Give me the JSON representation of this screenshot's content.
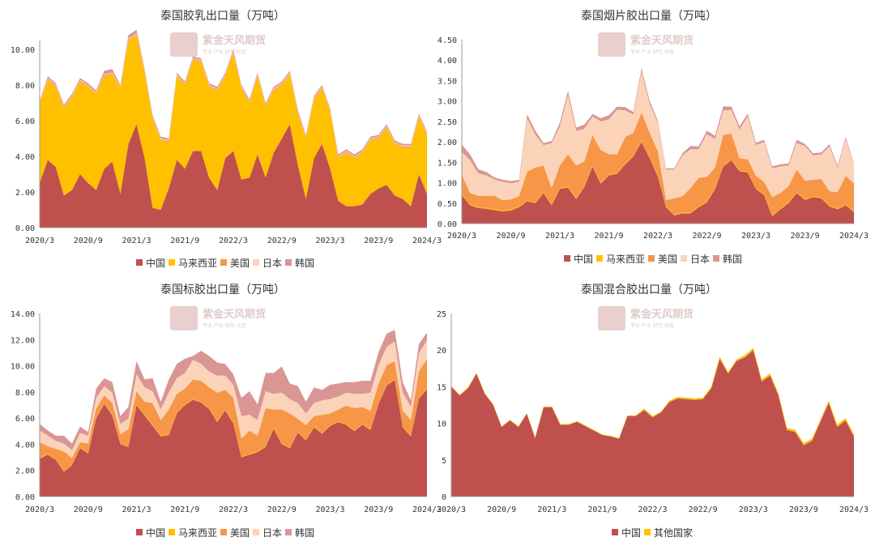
{
  "watermark": {
    "text": "紫金天风期货",
    "subtext": "专业 产业 研究 创造"
  },
  "colors": {
    "中国": "#c0504d",
    "马来西亚": "#ffc000",
    "美国": "#f79646",
    "日本": "#fbd3b9",
    "韩国": "#d99694",
    "其他国家": "#ffc000"
  },
  "chart_data": [
    {
      "type": "area",
      "stacked": true,
      "title": "泰国胶乳出口量（万吨）",
      "x_labels": [
        "2020/3",
        "2020/9",
        "2021/3",
        "2021/9",
        "2022/3",
        "2022/9",
        "2023/3",
        "2023/9",
        "2024/3"
      ],
      "x_count": 49,
      "ylim": [
        0,
        10.5
      ],
      "y_ticks": [
        "0.00",
        "2.00",
        "4.00",
        "6.00",
        "8.00",
        "10.00"
      ],
      "y_tick_values": [
        0,
        2,
        4,
        6,
        8,
        10
      ],
      "legend": [
        "中国",
        "马来西亚",
        "美国",
        "日本",
        "韩国"
      ],
      "series": [
        {
          "name": "中国",
          "values": [
            2.5,
            3.8,
            3.4,
            1.8,
            2.1,
            3.0,
            2.5,
            2.1,
            3.3,
            3.7,
            1.9,
            4.7,
            5.8,
            3.9,
            1.1,
            1.0,
            2.2,
            3.8,
            3.3,
            4.3,
            4.3,
            2.8,
            2.1,
            3.9,
            4.3,
            2.7,
            2.8,
            4.1,
            2.8,
            4.2,
            5.0,
            5.8,
            3.5,
            1.6,
            3.9,
            4.7,
            3.3,
            1.5,
            1.2,
            1.2,
            1.3,
            1.9,
            2.2,
            2.4,
            1.8,
            1.6,
            1.2,
            3.0,
            1.9
          ]
        },
        {
          "name": "马来西亚",
          "values": [
            4.4,
            4.5,
            4.5,
            4.9,
            5.2,
            5.2,
            5.4,
            5.4,
            5.2,
            4.9,
            5.9,
            5.8,
            5.0,
            4.8,
            5.0,
            3.9,
            2.6,
            4.7,
            4.7,
            5.1,
            5.0,
            5.1,
            5.6,
            4.6,
            5.5,
            5.1,
            4.2,
            4.4,
            4.0,
            3.5,
            3.0,
            2.8,
            2.9,
            3.4,
            3.3,
            3.1,
            3.2,
            2.4,
            3.0,
            2.7,
            2.9,
            3.0,
            2.8,
            3.2,
            2.9,
            2.9,
            3.3,
            3.2,
            3.3
          ]
        },
        {
          "name": "美国",
          "values": [
            0.05,
            0.05,
            0.05,
            0.05,
            0.05,
            0.05,
            0.05,
            0.05,
            0.05,
            0.05,
            0.05,
            0.05,
            0.05,
            0.05,
            0.05,
            0.05,
            0.05,
            0.05,
            0.05,
            0.05,
            0.05,
            0.05,
            0.05,
            0.05,
            0.05,
            0.05,
            0.05,
            0.05,
            0.05,
            0.05,
            0.05,
            0.05,
            0.05,
            0.05,
            0.05,
            0.05,
            0.05,
            0.05,
            0.05,
            0.05,
            0.05,
            0.05,
            0.05,
            0.05,
            0.05,
            0.05,
            0.05,
            0.05,
            0.05
          ]
        },
        {
          "name": "日本",
          "values": [
            0.05,
            0.05,
            0.05,
            0.05,
            0.05,
            0.05,
            0.05,
            0.05,
            0.05,
            0.05,
            0.05,
            0.05,
            0.05,
            0.05,
            0.05,
            0.05,
            0.05,
            0.05,
            0.05,
            0.05,
            0.05,
            0.05,
            0.05,
            0.05,
            0.05,
            0.05,
            0.05,
            0.05,
            0.05,
            0.05,
            0.05,
            0.05,
            0.05,
            0.05,
            0.05,
            0.05,
            0.05,
            0.05,
            0.05,
            0.05,
            0.05,
            0.05,
            0.05,
            0.05,
            0.05,
            0.05,
            0.05,
            0.05,
            0.05
          ]
        },
        {
          "name": "韩国",
          "values": [
            0.1,
            0.1,
            0.1,
            0.1,
            0.1,
            0.1,
            0.1,
            0.1,
            0.2,
            0.2,
            0.1,
            0.2,
            0.2,
            0.1,
            0.1,
            0.1,
            0.1,
            0.1,
            0.1,
            0.1,
            0.1,
            0.1,
            0.1,
            0.1,
            0.1,
            0.1,
            0.1,
            0.1,
            0.1,
            0.1,
            0.1,
            0.1,
            0.1,
            0.1,
            0.1,
            0.1,
            0.1,
            0.1,
            0.1,
            0.1,
            0.1,
            0.1,
            0.1,
            0.1,
            0.1,
            0.1,
            0.1,
            0.1,
            0.1
          ]
        }
      ]
    },
    {
      "type": "area",
      "stacked": true,
      "title": "泰国烟片胶出口量（万吨）",
      "x_labels": [
        "2020/3",
        "2020/9",
        "2021/3",
        "2021/9",
        "2022/3",
        "2022/9",
        "2023/3",
        "2023/9",
        "2024/3"
      ],
      "x_count": 49,
      "ylim": [
        0,
        4.5
      ],
      "y_ticks": [
        "0.00",
        "0.50",
        "1.00",
        "1.50",
        "2.00",
        "2.50",
        "3.00",
        "3.50",
        "4.00",
        "4.50"
      ],
      "y_tick_values": [
        0,
        0.5,
        1,
        1.5,
        2,
        2.5,
        3,
        3.5,
        4,
        4.5
      ],
      "legend": [
        "中国",
        "马来西亚",
        "美国",
        "日本",
        "韩国"
      ],
      "series": [
        {
          "name": "中国",
          "values": [
            0.7,
            0.45,
            0.38,
            0.36,
            0.33,
            0.3,
            0.32,
            0.4,
            0.55,
            0.5,
            0.75,
            0.45,
            0.85,
            0.88,
            0.6,
            0.9,
            1.4,
            0.98,
            1.18,
            1.22,
            1.45,
            1.65,
            2.0,
            1.6,
            1.15,
            0.4,
            0.2,
            0.25,
            0.25,
            0.4,
            0.52,
            0.85,
            1.4,
            1.55,
            1.28,
            1.25,
            0.85,
            0.7,
            0.18,
            0.35,
            0.5,
            0.75,
            0.58,
            0.65,
            0.62,
            0.42,
            0.35,
            0.45,
            0.28
          ]
        },
        {
          "name": "马来西亚",
          "values": [
            0.02,
            0.02,
            0.02,
            0.02,
            0.02,
            0.02,
            0.02,
            0.02,
            0.02,
            0.02,
            0.02,
            0.02,
            0.02,
            0.02,
            0.02,
            0.02,
            0.02,
            0.02,
            0.02,
            0.02,
            0.02,
            0.02,
            0.02,
            0.02,
            0.02,
            0.02,
            0.02,
            0.02,
            0.02,
            0.02,
            0.02,
            0.02,
            0.02,
            0.02,
            0.02,
            0.02,
            0.02,
            0.02,
            0.02,
            0.02,
            0.02,
            0.02,
            0.02,
            0.02,
            0.02,
            0.02,
            0.02,
            0.02,
            0.02
          ]
        },
        {
          "name": "美国",
          "values": [
            0.48,
            0.28,
            0.28,
            0.3,
            0.33,
            0.25,
            0.25,
            0.25,
            0.7,
            0.85,
            0.65,
            0.4,
            0.55,
            0.8,
            0.8,
            0.6,
            0.75,
            0.8,
            0.5,
            0.45,
            0.65,
            0.55,
            0.7,
            0.6,
            0.6,
            0.15,
            0.4,
            0.4,
            0.6,
            0.7,
            0.6,
            0.5,
            0.75,
            0.63,
            0.3,
            0.3,
            0.3,
            0.3,
            0.45,
            0.38,
            0.4,
            0.55,
            0.45,
            0.4,
            0.45,
            0.35,
            0.4,
            0.7,
            0.68
          ]
        },
        {
          "name": "日本",
          "values": [
            0.55,
            0.8,
            0.55,
            0.5,
            0.4,
            0.45,
            0.4,
            0.35,
            1.3,
            0.8,
            0.5,
            1.1,
            0.95,
            1.45,
            0.85,
            0.8,
            0.45,
            0.7,
            0.85,
            1.1,
            0.65,
            0.45,
            1.0,
            0.7,
            0.7,
            0.75,
            0.7,
            1.0,
            0.95,
            0.7,
            1.05,
            0.7,
            0.6,
            0.58,
            0.7,
            1.05,
            0.75,
            0.98,
            0.7,
            0.65,
            0.5,
            0.65,
            0.85,
            0.6,
            0.6,
            1.1,
            0.6,
            0.9,
            0.45
          ]
        },
        {
          "name": "韩国",
          "values": [
            0.18,
            0.15,
            0.1,
            0.08,
            0.05,
            0.05,
            0.05,
            0.05,
            0.1,
            0.1,
            0.05,
            0.05,
            0.1,
            0.1,
            0.08,
            0.1,
            0.06,
            0.08,
            0.1,
            0.07,
            0.08,
            0.06,
            0.08,
            0.08,
            0.05,
            0.03,
            0.03,
            0.05,
            0.08,
            0.07,
            0.08,
            0.08,
            0.1,
            0.08,
            0.08,
            0.07,
            0.06,
            0.05,
            0.05,
            0.05,
            0.05,
            0.08,
            0.05,
            0.05,
            0.05,
            0.05,
            0.05,
            0.05,
            0.03
          ]
        }
      ]
    },
    {
      "type": "area",
      "stacked": true,
      "title": "泰国标胶出口量（万吨）",
      "x_labels": [
        "2020/3",
        "2020/9",
        "2021/3",
        "2021/9",
        "2022/3",
        "2022/9",
        "2023/3",
        "2023/9",
        "2024/3"
      ],
      "x_count": 49,
      "ylim": [
        0,
        14
      ],
      "y_ticks": [
        "0.00",
        "2.00",
        "4.00",
        "6.00",
        "8.00",
        "10.00",
        "12.00",
        "14.00"
      ],
      "y_tick_values": [
        0,
        2,
        4,
        6,
        8,
        10,
        12,
        14
      ],
      "legend": [
        "中国",
        "马来西亚",
        "美国",
        "日本",
        "韩国"
      ],
      "series": [
        {
          "name": "中国",
          "values": [
            2.9,
            3.2,
            2.8,
            1.9,
            2.4,
            3.7,
            3.3,
            6.0,
            7.1,
            6.2,
            4.0,
            3.8,
            7.0,
            6.2,
            5.4,
            4.6,
            4.7,
            6.4,
            7.0,
            7.4,
            7.2,
            6.7,
            5.7,
            6.6,
            5.6,
            3.0,
            3.2,
            3.4,
            3.8,
            5.2,
            4.0,
            3.7,
            4.9,
            4.3,
            5.3,
            4.8,
            5.4,
            5.7,
            5.5,
            5.0,
            5.5,
            5.1,
            7.1,
            8.5,
            8.9,
            5.3,
            4.6,
            7.5,
            8.2
          ]
        },
        {
          "name": "马来西亚",
          "values": [
            0.05,
            0.05,
            0.05,
            0.05,
            0.05,
            0.05,
            0.05,
            0.05,
            0.05,
            0.05,
            0.05,
            0.05,
            0.05,
            0.05,
            0.05,
            0.05,
            0.05,
            0.05,
            0.05,
            0.05,
            0.05,
            0.05,
            0.05,
            0.05,
            0.05,
            0.05,
            0.05,
            0.05,
            0.05,
            0.05,
            0.05,
            0.05,
            0.05,
            0.05,
            0.05,
            0.05,
            0.05,
            0.05,
            0.05,
            0.05,
            0.05,
            0.05,
            0.05,
            0.05,
            0.05,
            0.05,
            0.05,
            0.05,
            0.05
          ]
        },
        {
          "name": "美国",
          "values": [
            1.2,
            0.6,
            0.8,
            1.5,
            0.5,
            0.4,
            0.7,
            0.7,
            0.6,
            0.9,
            0.7,
            1.3,
            1.0,
            1.0,
            1.7,
            1.2,
            1.9,
            1.4,
            1.2,
            1.5,
            1.6,
            1.6,
            2.2,
            1.5,
            1.9,
            1.4,
            1.8,
            1.2,
            2.9,
            1.4,
            2.6,
            2.6,
            1.0,
            1.1,
            0.8,
            1.4,
            0.9,
            0.9,
            1.4,
            1.7,
            1.3,
            1.4,
            1.5,
            1.5,
            1.4,
            1.2,
            1.2,
            2.0,
            2.3
          ]
        },
        {
          "name": "日本",
          "values": [
            0.9,
            0.8,
            0.6,
            0.6,
            0.6,
            0.7,
            0.6,
            0.8,
            0.7,
            0.8,
            0.8,
            0.8,
            1.3,
            1.1,
            0.9,
            0.8,
            1.3,
            1.2,
            1.2,
            1.5,
            1.3,
            1.2,
            1.3,
            1.1,
            1.0,
            1.7,
            1.2,
            1.2,
            1.3,
            1.2,
            1.3,
            1.1,
            1.2,
            0.9,
            1.0,
            1.1,
            1.1,
            1.0,
            1.0,
            1.1,
            1.0,
            1.4,
            1.4,
            1.4,
            1.5,
            1.4,
            1.0,
            1.4,
            1.4
          ]
        },
        {
          "name": "韩国",
          "values": [
            0.5,
            0.4,
            0.4,
            0.6,
            0.5,
            0.5,
            0.3,
            0.7,
            0.6,
            0.8,
            0.6,
            0.9,
            1.0,
            0.6,
            1.0,
            0.6,
            1.0,
            1.1,
            1.1,
            0.3,
            1.0,
            1.2,
            1.0,
            0.9,
            0.8,
            1.4,
            1.8,
            1.2,
            1.4,
            1.6,
            2.0,
            1.2,
            1.3,
            0.9,
            1.2,
            0.8,
            1.1,
            1.0,
            0.8,
            0.9,
            1.0,
            0.9,
            1.0,
            1.0,
            0.9,
            0.8,
            0.5,
            0.7,
            0.6
          ]
        }
      ]
    },
    {
      "type": "area",
      "stacked": true,
      "title": "泰国混合胶出口量（万吨）",
      "x_labels": [
        "2020/3",
        "2020/9",
        "2021/3",
        "2021/9",
        "2022/3",
        "2022/9",
        "2023/3",
        "2023/9",
        "2024/3"
      ],
      "x_count": 49,
      "ylim": [
        0,
        25
      ],
      "y_ticks": [
        "0",
        "5",
        "10",
        "15",
        "20",
        "25"
      ],
      "y_tick_values": [
        0,
        5,
        10,
        15,
        20,
        25
      ],
      "legend": [
        "中国",
        "其他国家"
      ],
      "series": [
        {
          "name": "中国",
          "values": [
            15.0,
            13.8,
            14.8,
            16.8,
            14.0,
            12.5,
            9.5,
            10.4,
            9.5,
            11.3,
            8.0,
            12.2,
            12.2,
            9.8,
            9.8,
            10.2,
            9.6,
            9.0,
            8.4,
            8.2,
            7.9,
            11.0,
            11.0,
            11.8,
            10.8,
            11.5,
            12.9,
            13.4,
            13.3,
            13.2,
            13.3,
            14.8,
            18.8,
            16.8,
            18.5,
            19.0,
            20.0,
            15.7,
            16.5,
            13.8,
            9.1,
            8.8,
            7.0,
            7.6,
            10.2,
            12.8,
            9.5,
            10.4,
            8.2
          ]
        },
        {
          "name": "其他国家",
          "values": [
            0.1,
            0.1,
            0.1,
            0.1,
            0.1,
            0.1,
            0.1,
            0.1,
            0.1,
            0.1,
            0.1,
            0.1,
            0.1,
            0.1,
            0.1,
            0.1,
            0.1,
            0.1,
            0.1,
            0.1,
            0.1,
            0.1,
            0.1,
            0.2,
            0.2,
            0.1,
            0.2,
            0.2,
            0.2,
            0.2,
            0.2,
            0.2,
            0.3,
            0.2,
            0.2,
            0.3,
            0.3,
            0.3,
            0.3,
            0.3,
            0.3,
            0.3,
            0.3,
            0.3,
            0.3,
            0.3,
            0.3,
            0.3,
            0.3
          ]
        }
      ]
    }
  ]
}
